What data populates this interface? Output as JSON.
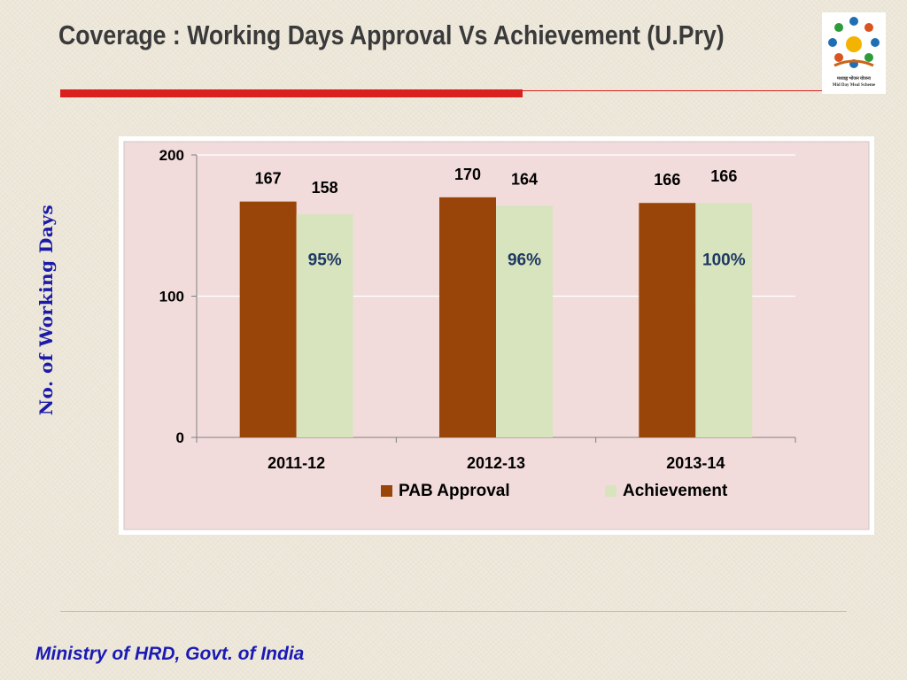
{
  "slide": {
    "title": "Coverage : Working Days Approval Vs Achievement (U.Pry)",
    "footer": "Ministry of HRD, Govt. of India",
    "logo": {
      "icon": "mid-day-meal-logo",
      "caption_hindi": "मध्याह्न भोजन योजना",
      "caption_english": "Mid Day Meal Scheme"
    }
  },
  "colors": {
    "title": "#3a3a3a",
    "accent_red": "#d9201f",
    "pab_approval": "#994409",
    "achievement": "#d7e4bd",
    "plot_background": "#f2dcdb",
    "ylabel": "#1a1aa8",
    "footer": "#1a1ab4"
  },
  "chart_data": {
    "type": "bar",
    "title": "",
    "xlabel": "",
    "ylabel": "No. of Working Days",
    "categories": [
      "2011-12",
      "2012-13",
      "2013-14"
    ],
    "series": [
      {
        "name": "PAB Approval",
        "values": [
          167,
          170,
          166
        ],
        "labels": [
          "167",
          "170",
          "166"
        ]
      },
      {
        "name": "Achievement",
        "values": [
          158,
          164,
          166
        ],
        "labels": [
          "158",
          "164",
          "166"
        ],
        "percent_labels": [
          "95%",
          "96%",
          "100%"
        ]
      }
    ],
    "ylim": [
      0,
      200
    ],
    "yticks": [
      0,
      100,
      200
    ],
    "grid": true,
    "legend": "bottom-center"
  }
}
